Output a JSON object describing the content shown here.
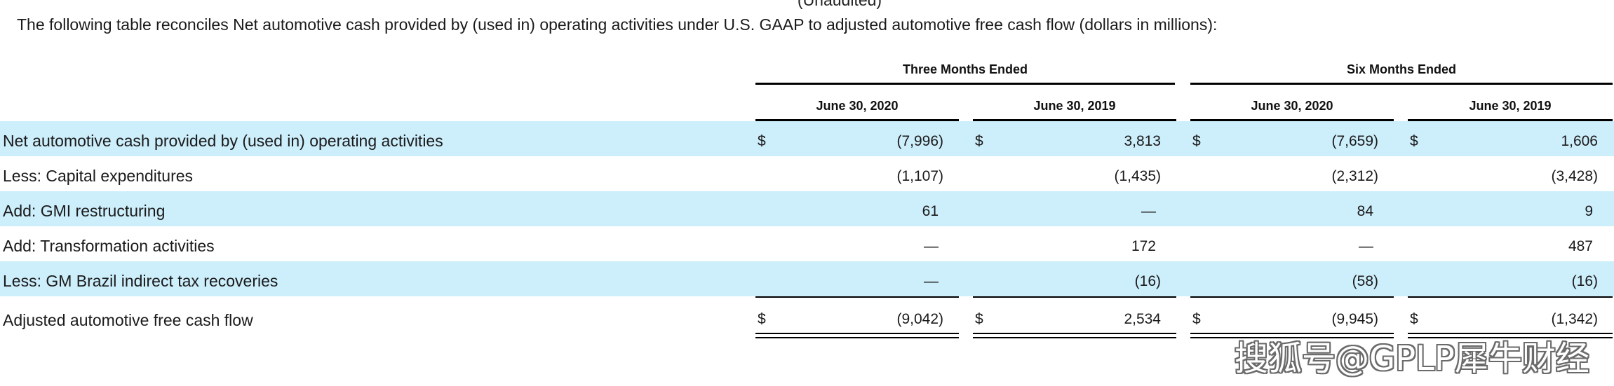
{
  "clipped_top": "(Unaudited)",
  "intro": "The following table reconciles Net automotive cash provided by (used in) operating activities under U.S. GAAP to adjusted automotive free cash flow (dollars in millions):",
  "groups": [
    "Three Months Ended",
    "Six Months Ended"
  ],
  "columns": [
    "June 30, 2020",
    "June 30, 2019",
    "June 30, 2020",
    "June 30, 2019"
  ],
  "rows": [
    {
      "label": "Net automotive cash provided by (used in) operating activities",
      "dollar": "$",
      "values": [
        "(7,996)",
        "3,813",
        "(7,659)",
        "1,606"
      ]
    },
    {
      "label": "Less: Capital expenditures",
      "dollar": "",
      "values": [
        "(1,107)",
        "(1,435)",
        "(2,312)",
        "(3,428)"
      ]
    },
    {
      "label": "Add: GMI restructuring",
      "dollar": "",
      "values": [
        "61",
        "—",
        "84",
        "9"
      ]
    },
    {
      "label": "Add: Transformation activities",
      "dollar": "",
      "values": [
        "—",
        "172",
        "—",
        "487"
      ]
    },
    {
      "label": "Less: GM Brazil indirect tax recoveries",
      "dollar": "",
      "values": [
        "—",
        "(16)",
        "(58)",
        "(16)"
      ]
    },
    {
      "label": "Adjusted automotive free cash flow",
      "dollar": "$",
      "values": [
        "(9,042)",
        "2,534",
        "(9,945)",
        "(1,342)"
      ]
    }
  ],
  "watermark": "搜狐号@GPLP犀牛财经",
  "colors": {
    "row_shade": "#cdeefb"
  }
}
